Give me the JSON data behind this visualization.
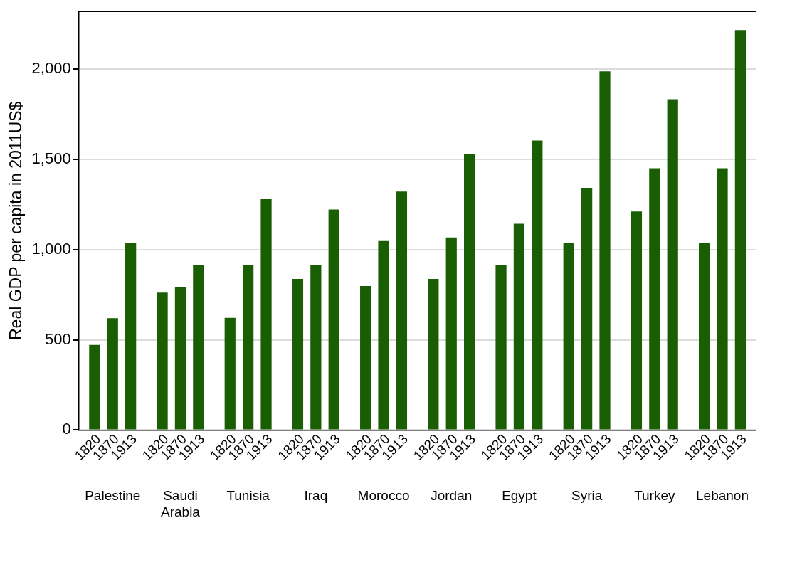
{
  "chart_data": {
    "type": "bar",
    "ylabel": "Real GDP per capita in 2011US$",
    "categories": [
      "Palestine",
      "Saudi Arabia",
      "Tunisia",
      "Iraq",
      "Morocco",
      "Jordan",
      "Egypt",
      "Syria",
      "Turkey",
      "Lebanon"
    ],
    "series": [
      {
        "name": "1820",
        "color": "#1a5e03",
        "values": [
          472,
          762,
          622,
          838,
          798,
          838,
          915,
          1037,
          1211,
          1037
        ]
      },
      {
        "name": "1870",
        "color": "#1a5e03",
        "values": [
          620,
          792,
          917,
          915,
          1048,
          1068,
          1143,
          1343,
          1451,
          1451
        ]
      },
      {
        "name": "1913",
        "color": "#1a5e03",
        "values": [
          1035,
          915,
          1282,
          1222,
          1322,
          1528,
          1605,
          1988,
          1834,
          2217
        ]
      }
    ],
    "ylim": [
      0,
      2320
    ],
    "yticks": [
      0,
      500,
      {
        "value": 1000,
        "label": "1,000"
      },
      {
        "value": 1500,
        "label": "1,500"
      },
      {
        "value": 2000,
        "label": "2,000"
      }
    ],
    "grid": "y",
    "legend": false
  }
}
